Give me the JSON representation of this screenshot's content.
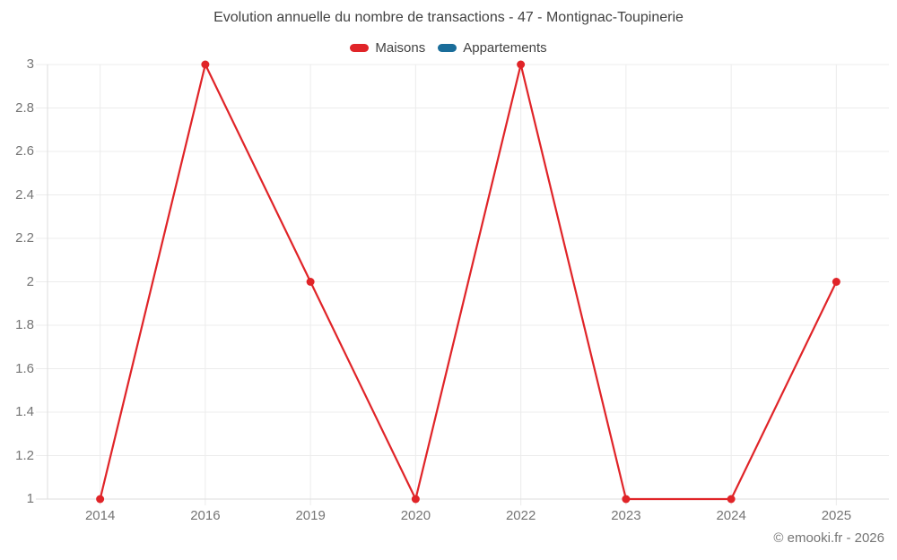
{
  "page": {
    "footer_text": "© emooki.fr - 2026"
  },
  "chart_data": {
    "type": "line",
    "title": "Evolution annuelle du nombre de transactions - 47 - Montignac-Toupinerie",
    "categories": [
      "2014",
      "2016",
      "2019",
      "2020",
      "2022",
      "2023",
      "2024",
      "2025"
    ],
    "series": [
      {
        "name": "Maisons",
        "color": "#e02428",
        "values": [
          1,
          3,
          2,
          1,
          3,
          1,
          1,
          2
        ]
      },
      {
        "name": "Appartements",
        "color": "#1a6d9a",
        "values": []
      }
    ],
    "xlabel": "",
    "ylabel": "",
    "ylim": [
      1,
      3
    ],
    "ytick_step": 0.2,
    "ytick_labels": [
      "1",
      "1.2",
      "1.4",
      "1.6",
      "1.8",
      "2",
      "2.2",
      "2.4",
      "2.6",
      "2.8",
      "3"
    ],
    "grid": true,
    "legend_position": "top",
    "colors": {
      "grid": "#ececec",
      "axis": "#dedede",
      "tick_label": "#757575",
      "title": "#424242"
    }
  }
}
